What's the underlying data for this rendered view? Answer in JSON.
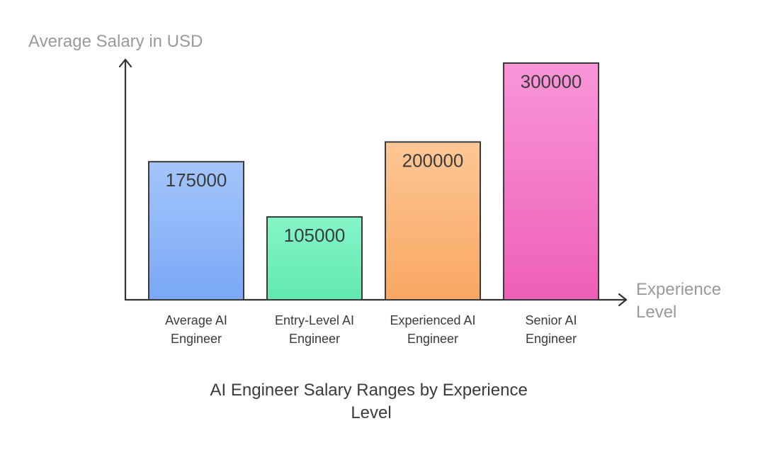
{
  "chart_data": {
    "type": "bar",
    "title": "AI Engineer Salary Ranges by Experience Level",
    "title_lines": [
      "AI Engineer Salary Ranges by Experience",
      "Level"
    ],
    "ylabel": "Average Salary in USD",
    "xlabel": "Experience Level",
    "xlabel_lines": [
      "Experience",
      "Level"
    ],
    "categories": [
      "Average AI Engineer",
      "Entry-Level AI Engineer",
      "Experienced AI Engineer",
      "Senior AI Engineer"
    ],
    "category_lines": [
      [
        "Average AI",
        "Engineer"
      ],
      [
        "Entry-Level AI",
        "Engineer"
      ],
      [
        "Experienced AI",
        "Engineer"
      ],
      [
        "Senior AI",
        "Engineer"
      ]
    ],
    "values": [
      175000,
      105000,
      200000,
      300000
    ],
    "ylim": [
      0,
      300000
    ],
    "grid": false,
    "legend": "none",
    "colors": [
      {
        "top": "#a4c5fb",
        "bottom": "#7aa8f6"
      },
      {
        "top": "#84f5c7",
        "bottom": "#62e8b0"
      },
      {
        "top": "#fcc795",
        "bottom": "#f9a762"
      },
      {
        "top": "#f996d8",
        "bottom": "#ee5fb7"
      }
    ],
    "outline_color": "#3a3a3a",
    "axis_color": "#333333",
    "axis_label_color": "#9a9a9a",
    "text_color": "#3b3b3b"
  }
}
